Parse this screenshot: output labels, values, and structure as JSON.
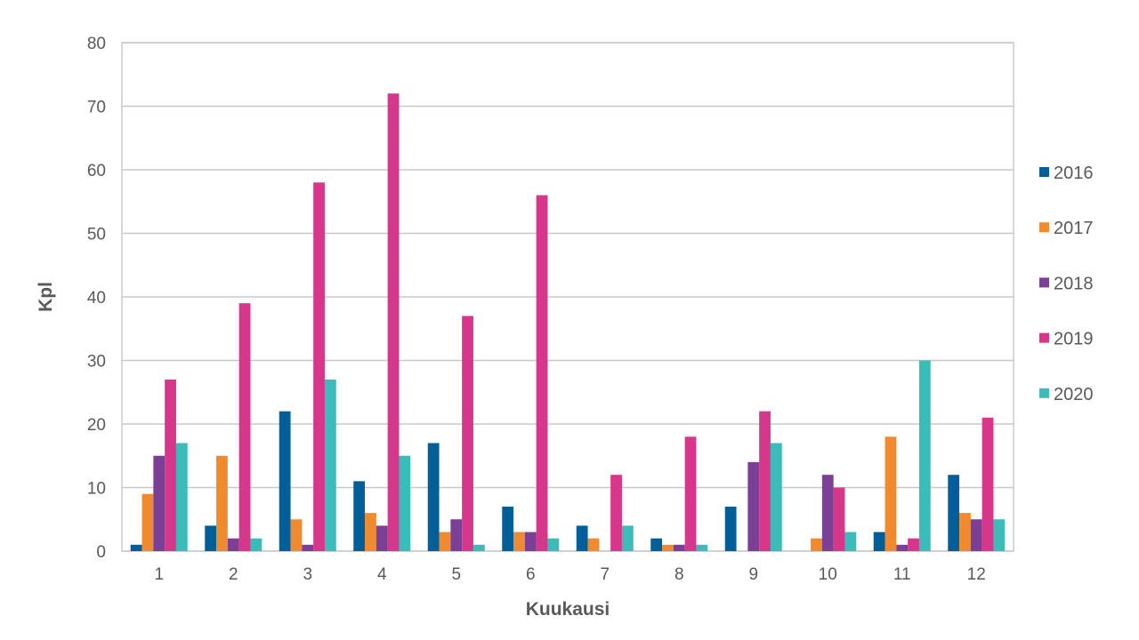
{
  "chart_data": {
    "type": "bar",
    "xlabel": "Kuukausi",
    "ylabel": "Kpl",
    "ylim": [
      0,
      80
    ],
    "yticks": [
      0,
      10,
      20,
      30,
      40,
      50,
      60,
      70,
      80
    ],
    "grid": true,
    "legend_position": "right",
    "categories": [
      "1",
      "2",
      "3",
      "4",
      "5",
      "6",
      "7",
      "8",
      "9",
      "10",
      "11",
      "12"
    ],
    "series": [
      {
        "name": "2016",
        "color": "#005f99",
        "values": [
          1,
          4,
          22,
          11,
          17,
          7,
          4,
          2,
          7,
          0,
          3,
          12
        ]
      },
      {
        "name": "2017",
        "color": "#f08a2e",
        "values": [
          9,
          15,
          5,
          6,
          3,
          3,
          2,
          1,
          0,
          2,
          18,
          6
        ]
      },
      {
        "name": "2018",
        "color": "#7b3f96",
        "values": [
          15,
          2,
          1,
          4,
          5,
          3,
          0,
          1,
          14,
          12,
          1,
          5
        ]
      },
      {
        "name": "2019",
        "color": "#d6378a",
        "values": [
          27,
          39,
          58,
          72,
          37,
          56,
          12,
          18,
          22,
          10,
          2,
          21
        ]
      },
      {
        "name": "2020",
        "color": "#3bbcb8",
        "values": [
          17,
          2,
          27,
          15,
          1,
          2,
          4,
          1,
          17,
          3,
          30,
          5
        ]
      }
    ]
  }
}
